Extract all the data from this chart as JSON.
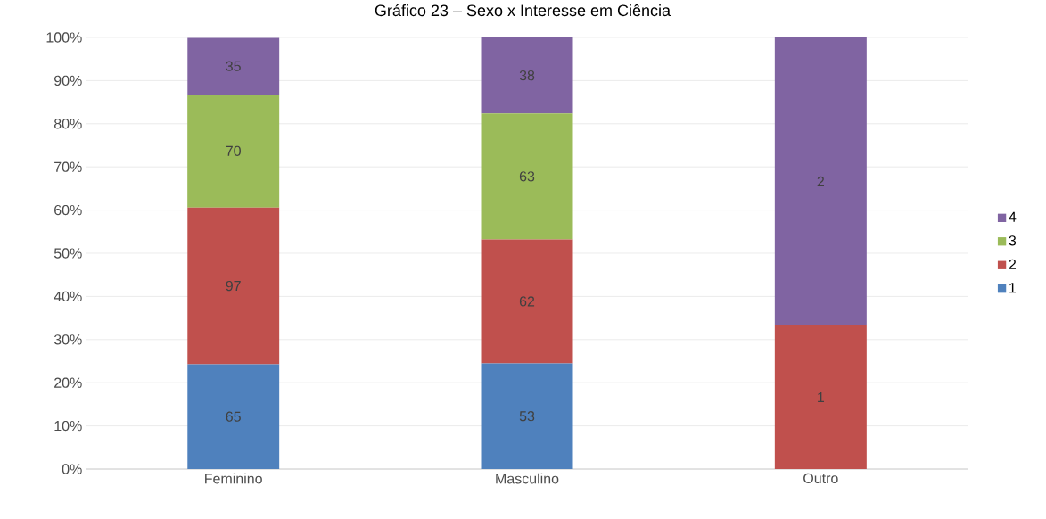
{
  "chart_data": {
    "type": "bar",
    "stacked": true,
    "title": "Gráfico 23 – Sexo x Interesse em Ciência",
    "categories": [
      "Feminino",
      "Masculino",
      "Outro"
    ],
    "series": [
      {
        "name": "1",
        "color": "#4f81bd",
        "values": [
          24.3,
          24.5,
          0
        ]
      },
      {
        "name": "2",
        "color": "#c0504d",
        "values": [
          36.3,
          28.7,
          33.3
        ]
      },
      {
        "name": "3",
        "color": "#9bbb59",
        "values": [
          26.2,
          29.2,
          0
        ]
      },
      {
        "name": "4",
        "color": "#8064a2",
        "values": [
          13.1,
          17.6,
          66.7
        ]
      }
    ],
    "annotations": [
      "65",
      "53",
      "97",
      "62",
      "1",
      "70",
      "63",
      "35",
      "38",
      "2"
    ],
    "ylim": [
      0,
      100
    ],
    "yticks": [
      {
        "value": 0,
        "label": "0%"
      },
      {
        "value": 10,
        "label": "10%"
      },
      {
        "value": 20,
        "label": "20%"
      },
      {
        "value": 30,
        "label": "30%"
      },
      {
        "value": 40,
        "label": "40%"
      },
      {
        "value": 50,
        "label": "50%"
      },
      {
        "value": 60,
        "label": "60%"
      },
      {
        "value": 70,
        "label": "70%"
      },
      {
        "value": 80,
        "label": "80%"
      },
      {
        "value": 90,
        "label": "90%"
      },
      {
        "value": 100,
        "label": "100%"
      }
    ],
    "grid": "y",
    "legend": "right"
  }
}
